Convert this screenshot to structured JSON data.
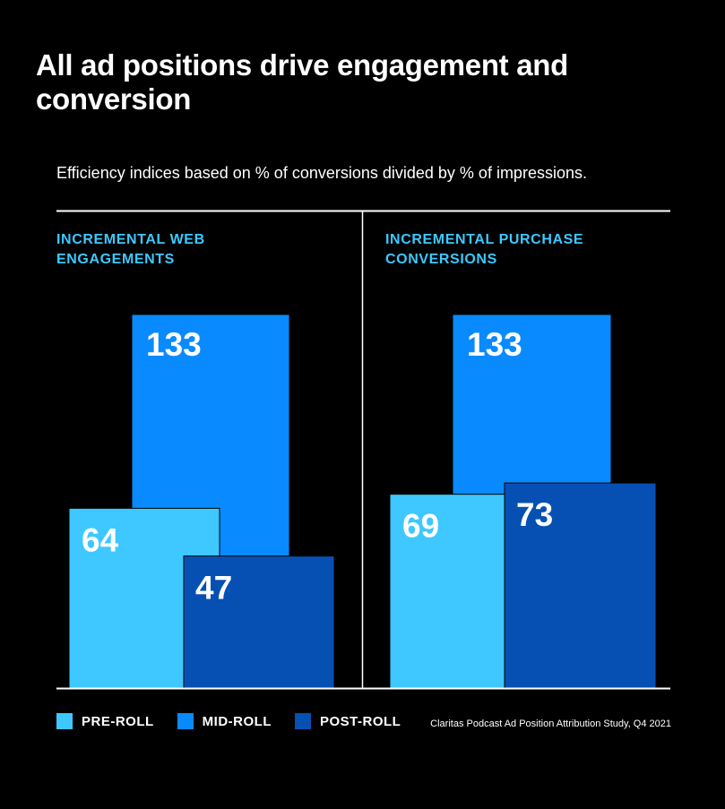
{
  "title": "All ad positions drive engagement and conversion",
  "subtitle": "Efficiency indices based on % of conversions divided by % of impressions.",
  "source": "Claritas Podcast Ad Position Attribution Study, Q4 2021",
  "colors": {
    "pre_roll": "#3ec8ff",
    "mid_roll": "#0a8aff",
    "post_roll": "#0750b3",
    "group_label": "#3ec8ff",
    "background": "#000000",
    "rule": "#ffffff"
  },
  "legend": [
    {
      "key": "pre_roll",
      "label": "PRE-ROLL"
    },
    {
      "key": "mid_roll",
      "label": "MID-ROLL"
    },
    {
      "key": "post_roll",
      "label": "POST-ROLL"
    }
  ],
  "chart_data": {
    "type": "bar",
    "title": "All ad positions drive engagement and conversion",
    "subtitle": "Efficiency indices based on % of conversions divided by % of impressions.",
    "categories": [
      "INCREMENTAL WEB ENGAGEMENTS",
      "INCREMENTAL PURCHASE CONVERSIONS"
    ],
    "category_lines": [
      [
        "INCREMENTAL WEB",
        "ENGAGEMENTS"
      ],
      [
        "INCREMENTAL PURCHASE",
        "CONVERSIONS"
      ]
    ],
    "series": [
      {
        "name": "PRE-ROLL",
        "key": "pre_roll",
        "values": [
          64,
          69
        ]
      },
      {
        "name": "MID-ROLL",
        "key": "mid_roll",
        "values": [
          133,
          133
        ]
      },
      {
        "name": "POST-ROLL",
        "key": "post_roll",
        "values": [
          47,
          73
        ]
      }
    ],
    "ylim": [
      0,
      140
    ],
    "xlabel": "",
    "ylabel": "",
    "grid": false,
    "legend_position": "bottom-left"
  }
}
